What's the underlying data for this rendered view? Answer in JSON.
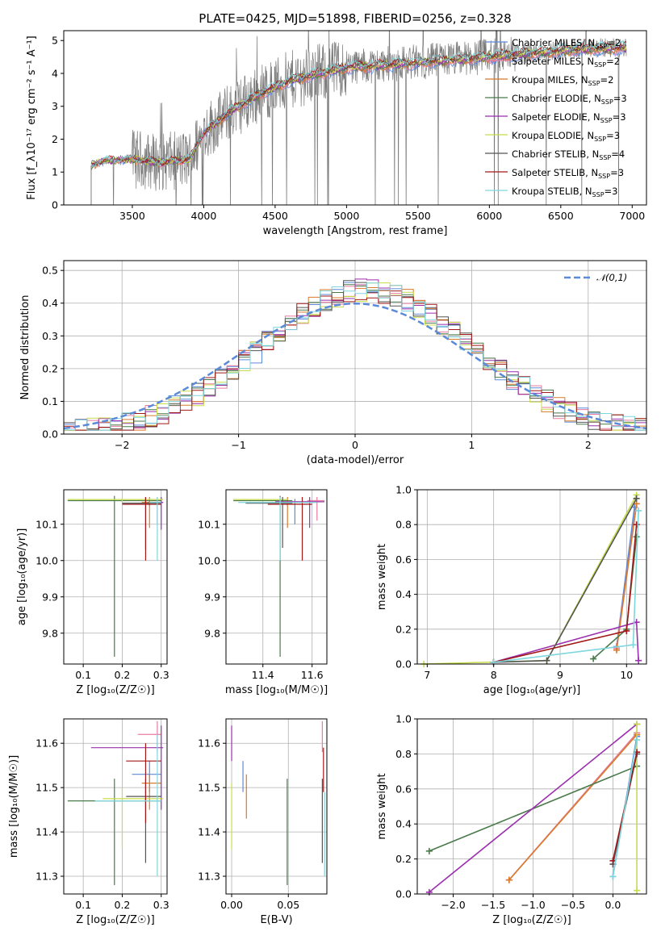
{
  "figure_title": "PLATE=0425, MJD=51898, FIBERID=0256, z=0.328",
  "colors": {
    "chabrier_miles": "#5b8ad9",
    "salpeter_miles": "#e87ba0",
    "kroupa_miles": "#d97a2b",
    "chabrier_elodie": "#4a7a4a",
    "salpeter_elodie": "#9b2fae",
    "kroupa_elodie": "#c8dc4a",
    "chabrier_stelib": "#555555",
    "salpeter_stelib": "#a01818",
    "kroupa_stelib": "#7fd6dc",
    "data": "#7a7a7a",
    "normal": "#5b8ad9",
    "grid": "#b0b0b0"
  },
  "chart_data": [
    {
      "id": "spectrum",
      "type": "line",
      "xlabel": "wavelength [Angstrom, rest frame]",
      "ylabel": "Flux [f_λ10⁻¹⁷ erg cm⁻² s⁻¹ A⁻¹]",
      "xlim": [
        3020,
        7100
      ],
      "ylim": [
        0,
        5.3
      ],
      "xticks": [
        3500,
        4000,
        4500,
        5000,
        5500,
        6000,
        6500,
        7000
      ],
      "yticks": [
        0,
        1,
        2,
        3,
        4,
        5
      ],
      "grid": false,
      "legend_position": "top-right",
      "legend": [
        {
          "label": "Chabrier MILES, N",
          "sub": "SSP",
          "tail": "=2",
          "color_key": "chabrier_miles"
        },
        {
          "label": "Salpeter MILES, N",
          "sub": "SSP",
          "tail": "=2",
          "color_key": "salpeter_miles"
        },
        {
          "label": "Kroupa MILES, N",
          "sub": "SSP",
          "tail": "=2",
          "color_key": "kroupa_miles"
        },
        {
          "label": "Chabrier ELODIE, N",
          "sub": "SSP",
          "tail": "=3",
          "color_key": "chabrier_elodie"
        },
        {
          "label": "Salpeter ELODIE, N",
          "sub": "SSP",
          "tail": "=3",
          "color_key": "salpeter_elodie"
        },
        {
          "label": "Kroupa ELODIE, N",
          "sub": "SSP",
          "tail": "=3",
          "color_key": "kroupa_elodie"
        },
        {
          "label": "Chabrier STELIB, N",
          "sub": "SSP",
          "tail": "=4",
          "color_key": "chabrier_stelib"
        },
        {
          "label": "Salpeter STELIB, N",
          "sub": "SSP",
          "tail": "=3",
          "color_key": "salpeter_stelib"
        },
        {
          "label": "Kroupa STELIB, N",
          "sub": "SSP",
          "tail": "=3",
          "color_key": "kroupa_stelib"
        }
      ],
      "continuum_knots": [
        [
          3210,
          1.2
        ],
        [
          3300,
          1.35
        ],
        [
          3500,
          1.4
        ],
        [
          3700,
          1.3
        ],
        [
          3900,
          1.4
        ],
        [
          4000,
          2.2
        ],
        [
          4200,
          2.9
        ],
        [
          4400,
          3.4
        ],
        [
          4600,
          3.8
        ],
        [
          4800,
          4.0
        ],
        [
          5000,
          4.2
        ],
        [
          5200,
          4.25
        ],
        [
          5500,
          4.35
        ],
        [
          5800,
          4.45
        ],
        [
          6200,
          4.6
        ],
        [
          6600,
          4.75
        ],
        [
          7000,
          4.8
        ]
      ]
    },
    {
      "id": "residuals",
      "type": "line",
      "xlabel": "(data-model)/error",
      "ylabel": "Normed distribution",
      "xlim": [
        -2.5,
        2.5
      ],
      "ylim": [
        0,
        0.53
      ],
      "xticks": [
        -2,
        -1,
        0,
        1,
        2
      ],
      "yticks": [
        0.0,
        0.1,
        0.2,
        0.3,
        0.4,
        0.5
      ],
      "grid": true,
      "legend_position": "top-right",
      "normal_label": "𝒩(0,1)",
      "normal": {
        "mean": 0,
        "sigma": 1
      }
    },
    {
      "id": "age-vs-Z",
      "type": "scatter",
      "xlabel": "Z [log₁₀(Z/Z☉)]",
      "ylabel": "age  [log₁₀(age/yr)]",
      "xlim": [
        0.05,
        0.315
      ],
      "ylim": [
        9.715,
        10.195
      ],
      "xticks": [
        0.1,
        0.2,
        0.3
      ],
      "yticks": [
        9.8,
        9.9,
        10.0,
        10.1
      ],
      "grid": true,
      "points": [
        {
          "x": 0.27,
          "xlo": 0.265,
          "xhi": 0.305,
          "y": 10.16,
          "ylo": 10.15,
          "yhi": 10.17,
          "color_key": "chabrier_miles"
        },
        {
          "x": 0.29,
          "xlo": 0.275,
          "xhi": 0.3,
          "y": 10.165,
          "ylo": 10.1,
          "yhi": 10.175,
          "color_key": "salpeter_miles"
        },
        {
          "x": 0.27,
          "xlo": 0.25,
          "xhi": 0.3,
          "y": 10.16,
          "ylo": 10.09,
          "yhi": 10.175,
          "color_key": "kroupa_miles"
        },
        {
          "x": 0.18,
          "xlo": 0.06,
          "xhi": 0.3,
          "y": 10.165,
          "ylo": 9.735,
          "yhi": 10.178,
          "color_key": "chabrier_elodie"
        },
        {
          "x": 0.3,
          "xlo": 0.29,
          "xhi": 0.305,
          "y": 10.16,
          "ylo": 10.085,
          "yhi": 10.175,
          "color_key": "salpeter_elodie"
        },
        {
          "x": 0.2,
          "xlo": 0.06,
          "xhi": 0.305,
          "y": 10.168,
          "ylo": 10.16,
          "yhi": 10.175,
          "color_key": "kroupa_elodie"
        },
        {
          "x": 0.26,
          "xlo": 0.2,
          "xhi": 0.3,
          "y": 10.158,
          "ylo": 10.03,
          "yhi": 10.175,
          "color_key": "chabrier_stelib"
        },
        {
          "x": 0.26,
          "xlo": 0.2,
          "xhi": 0.3,
          "y": 10.155,
          "ylo": 10.0,
          "yhi": 10.175,
          "color_key": "salpeter_stelib"
        },
        {
          "x": 0.29,
          "xlo": 0.27,
          "xhi": 0.3,
          "y": 10.16,
          "ylo": 10.0,
          "yhi": 10.175,
          "color_key": "kroupa_stelib"
        }
      ]
    },
    {
      "id": "age-vs-mass",
      "type": "scatter",
      "xlabel": "mass [log₁₀(M/M☉)]",
      "ylabel": "",
      "xlim": [
        11.25,
        11.66
      ],
      "ylim": [
        9.715,
        10.195
      ],
      "xticks": [
        11.4,
        11.6
      ],
      "yticks": [
        9.8,
        9.9,
        10.0,
        10.1
      ],
      "grid": true,
      "points": [
        {
          "x": 11.53,
          "xlo": 11.49,
          "xhi": 11.56,
          "y": 10.16,
          "ylo": 10.1,
          "yhi": 10.17,
          "color_key": "chabrier_miles"
        },
        {
          "x": 11.62,
          "xlo": 11.58,
          "xhi": 11.65,
          "y": 10.165,
          "ylo": 10.11,
          "yhi": 10.175,
          "color_key": "salpeter_miles"
        },
        {
          "x": 11.5,
          "xlo": 11.45,
          "xhi": 11.53,
          "y": 10.16,
          "ylo": 10.09,
          "yhi": 10.175,
          "color_key": "kroupa_miles"
        },
        {
          "x": 11.47,
          "xlo": 11.28,
          "xhi": 11.52,
          "y": 10.165,
          "ylo": 9.735,
          "yhi": 10.178,
          "color_key": "chabrier_elodie"
        },
        {
          "x": 11.59,
          "xlo": 11.45,
          "xhi": 11.65,
          "y": 10.162,
          "ylo": 10.09,
          "yhi": 10.175,
          "color_key": "salpeter_elodie"
        },
        {
          "x": 11.47,
          "xlo": 11.28,
          "xhi": 11.5,
          "y": 10.168,
          "ylo": 10.16,
          "yhi": 10.175,
          "color_key": "kroupa_elodie"
        },
        {
          "x": 11.48,
          "xlo": 11.33,
          "xhi": 11.52,
          "y": 10.158,
          "ylo": 10.035,
          "yhi": 10.175,
          "color_key": "chabrier_stelib"
        },
        {
          "x": 11.56,
          "xlo": 11.42,
          "xhi": 11.6,
          "y": 10.155,
          "ylo": 10.0,
          "yhi": 10.175,
          "color_key": "salpeter_stelib"
        },
        {
          "x": 11.47,
          "xlo": 11.3,
          "xhi": 11.62,
          "y": 10.16,
          "ylo": 10.0,
          "yhi": 10.175,
          "color_key": "kroupa_stelib"
        }
      ]
    },
    {
      "id": "weight-vs-age",
      "type": "line",
      "xlabel": "age  [log₁₀(age/yr)]",
      "ylabel": "mass weight",
      "xlim": [
        6.85,
        10.3
      ],
      "ylim": [
        0,
        1
      ],
      "xticks": [
        7,
        8,
        9,
        10
      ],
      "yticks": [
        0.0,
        0.2,
        0.4,
        0.6,
        0.8,
        1.0
      ],
      "grid": true,
      "series": [
        {
          "color_key": "chabrier_miles",
          "points": [
            [
              9.85,
              0.1
            ],
            [
              10.12,
              0.9
            ]
          ]
        },
        {
          "color_key": "salpeter_miles",
          "points": [
            [
              9.85,
              0.09
            ],
            [
              10.15,
              0.92
            ]
          ]
        },
        {
          "color_key": "kroupa_miles",
          "points": [
            [
              9.85,
              0.08
            ],
            [
              10.15,
              0.92
            ]
          ]
        },
        {
          "color_key": "chabrier_elodie",
          "points": [
            [
              9.5,
              0.03
            ],
            [
              10.0,
              0.2
            ],
            [
              10.15,
              0.73
            ]
          ]
        },
        {
          "color_key": "salpeter_elodie",
          "points": [
            [
              8.0,
              0.01
            ],
            [
              10.15,
              0.24
            ],
            [
              10.18,
              0.02
            ]
          ]
        },
        {
          "color_key": "kroupa_elodie",
          "points": [
            [
              6.95,
              0.0
            ],
            [
              8.8,
              0.02
            ],
            [
              10.15,
              0.97
            ]
          ]
        },
        {
          "color_key": "chabrier_stelib",
          "points": [
            [
              8.0,
              0.01
            ],
            [
              8.8,
              0.02
            ],
            [
              10.15,
              0.95
            ]
          ]
        },
        {
          "color_key": "salpeter_stelib",
          "points": [
            [
              8.0,
              0.01
            ],
            [
              10.0,
              0.19
            ],
            [
              10.15,
              0.8
            ]
          ]
        },
        {
          "color_key": "kroupa_stelib",
          "points": [
            [
              8.0,
              0.01
            ],
            [
              10.1,
              0.11
            ],
            [
              10.18,
              0.88
            ]
          ]
        }
      ]
    },
    {
      "id": "mass-vs-Z",
      "type": "scatter",
      "xlabel": "Z [log₁₀(Z/Z☉)]",
      "ylabel": "mass [log₁₀(M/M☉)]",
      "xlim": [
        0.05,
        0.315
      ],
      "ylim": [
        11.26,
        11.655
      ],
      "xticks": [
        0.1,
        0.2,
        0.3
      ],
      "yticks": [
        11.3,
        11.4,
        11.5,
        11.6
      ],
      "grid": true,
      "points": [
        {
          "x": 0.27,
          "xlo": 0.225,
          "xhi": 0.3,
          "y": 11.53,
          "ylo": 11.49,
          "yhi": 11.56,
          "color_key": "chabrier_miles"
        },
        {
          "x": 0.29,
          "xlo": 0.24,
          "xhi": 0.3,
          "y": 11.62,
          "ylo": 11.58,
          "yhi": 11.65,
          "color_key": "salpeter_miles"
        },
        {
          "x": 0.27,
          "xlo": 0.25,
          "xhi": 0.3,
          "y": 11.51,
          "ylo": 11.45,
          "yhi": 11.53,
          "color_key": "kroupa_miles"
        },
        {
          "x": 0.18,
          "xlo": 0.06,
          "xhi": 0.3,
          "y": 11.47,
          "ylo": 11.28,
          "yhi": 11.52,
          "color_key": "chabrier_elodie"
        },
        {
          "x": 0.3,
          "xlo": 0.12,
          "xhi": 0.305,
          "y": 11.59,
          "ylo": 11.45,
          "yhi": 11.64,
          "color_key": "salpeter_elodie"
        },
        {
          "x": 0.2,
          "xlo": 0.15,
          "xhi": 0.305,
          "y": 11.475,
          "ylo": 11.36,
          "yhi": 11.5,
          "color_key": "kroupa_elodie"
        },
        {
          "x": 0.26,
          "xlo": 0.21,
          "xhi": 0.3,
          "y": 11.48,
          "ylo": 11.33,
          "yhi": 11.52,
          "color_key": "chabrier_stelib"
        },
        {
          "x": 0.26,
          "xlo": 0.21,
          "xhi": 0.3,
          "y": 11.56,
          "ylo": 11.42,
          "yhi": 11.6,
          "color_key": "salpeter_stelib"
        },
        {
          "x": 0.29,
          "xlo": 0.13,
          "xhi": 0.3,
          "y": 11.47,
          "ylo": 11.3,
          "yhi": 11.62,
          "color_key": "kroupa_stelib"
        }
      ]
    },
    {
      "id": "mass-vs-ebv",
      "type": "scatter",
      "xlabel": "E(B-V)",
      "ylabel": "",
      "xlim": [
        -0.005,
        0.084
      ],
      "ylim": [
        11.26,
        11.655
      ],
      "xticks": [
        0.0,
        0.05
      ],
      "xtick_labels": [
        "0.00",
        "0.05"
      ],
      "yticks": [
        11.3,
        11.4,
        11.5,
        11.6
      ],
      "grid": true,
      "points": [
        {
          "x": 0.01,
          "y": 11.53,
          "ylo": 11.49,
          "yhi": 11.56,
          "color_key": "chabrier_miles"
        },
        {
          "x": 0.08,
          "y": 11.62,
          "ylo": 11.58,
          "yhi": 11.65,
          "color_key": "salpeter_miles"
        },
        {
          "x": 0.013,
          "y": 11.49,
          "ylo": 11.43,
          "yhi": 11.53,
          "color_key": "kroupa_miles"
        },
        {
          "x": 0.049,
          "y": 11.4,
          "ylo": 11.28,
          "yhi": 11.52,
          "color_key": "chabrier_elodie"
        },
        {
          "x": 0.0,
          "y": 11.6,
          "ylo": 11.56,
          "yhi": 11.64,
          "color_key": "salpeter_elodie"
        },
        {
          "x": 0.0,
          "y": 11.43,
          "ylo": 11.36,
          "yhi": 11.51,
          "color_key": "kroupa_elodie"
        },
        {
          "x": 0.08,
          "y": 11.45,
          "ylo": 11.33,
          "yhi": 11.52,
          "color_key": "chabrier_stelib"
        },
        {
          "x": 0.081,
          "y": 11.54,
          "ylo": 11.49,
          "yhi": 11.59,
          "color_key": "salpeter_stelib"
        },
        {
          "x": 0.082,
          "y": 11.4,
          "ylo": 11.3,
          "yhi": 11.49,
          "color_key": "kroupa_stelib"
        }
      ]
    },
    {
      "id": "weight-vs-Z",
      "type": "line",
      "xlabel": "Z [log₁₀(Z/Z☉)]",
      "ylabel": "mass weight",
      "xlim": [
        -2.45,
        0.42
      ],
      "ylim": [
        0,
        1
      ],
      "xticks": [
        -2.0,
        -1.5,
        -1.0,
        -0.5,
        0.0
      ],
      "yticks": [
        0.0,
        0.2,
        0.4,
        0.6,
        0.8,
        1.0
      ],
      "grid": true,
      "series": [
        {
          "color_key": "chabrier_miles",
          "points": [
            [
              0.0,
              0.1
            ],
            [
              0.3,
              0.9
            ]
          ]
        },
        {
          "color_key": "salpeter_miles",
          "points": [
            [
              -1.3,
              0.08
            ],
            [
              0.3,
              0.92
            ]
          ]
        },
        {
          "color_key": "kroupa_miles",
          "points": [
            [
              -1.3,
              0.08
            ],
            [
              0.3,
              0.91
            ]
          ]
        },
        {
          "color_key": "chabrier_elodie",
          "points": [
            [
              -2.3,
              0.245
            ],
            [
              0.3,
              0.73
            ]
          ]
        },
        {
          "color_key": "salpeter_elodie",
          "points": [
            [
              -2.3,
              0.01
            ],
            [
              0.3,
              0.97
            ]
          ]
        },
        {
          "color_key": "kroupa_elodie",
          "points": [
            [
              0.3,
              0.02
            ],
            [
              0.3,
              0.97
            ]
          ]
        },
        {
          "color_key": "chabrier_stelib",
          "points": [
            [
              0.0,
              0.17
            ],
            [
              0.3,
              0.8
            ]
          ]
        },
        {
          "color_key": "salpeter_stelib",
          "points": [
            [
              0.0,
              0.19
            ],
            [
              0.3,
              0.81
            ]
          ]
        },
        {
          "color_key": "kroupa_stelib",
          "points": [
            [
              0.0,
              0.1
            ],
            [
              0.3,
              0.88
            ]
          ]
        }
      ]
    }
  ]
}
